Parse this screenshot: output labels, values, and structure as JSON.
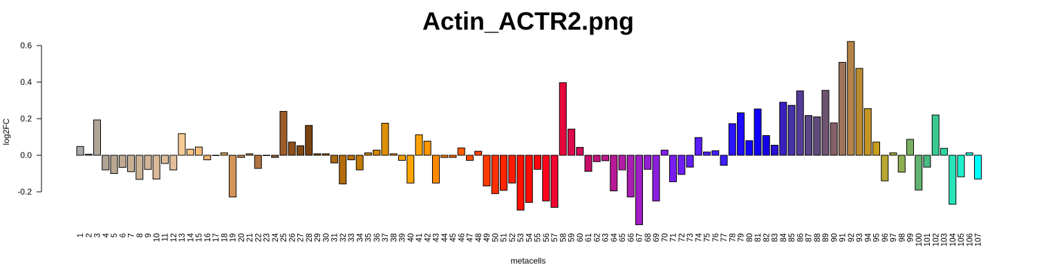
{
  "chart_data": {
    "type": "bar",
    "title": "Actin_ACTR2.png",
    "xlabel": "metacells",
    "ylabel": "log2FC",
    "ylim": [
      -0.38,
      0.62
    ],
    "yticks": [
      -0.2,
      0.0,
      0.2,
      0.4,
      0.6
    ],
    "ytick_labels": [
      "-0.2",
      "0.0",
      "0.2",
      "0.4",
      "0.6"
    ],
    "grid": false,
    "categories": [
      "1",
      "2",
      "3",
      "4",
      "5",
      "6",
      "7",
      "8",
      "9",
      "10",
      "11",
      "12",
      "13",
      "14",
      "15",
      "16",
      "17",
      "18",
      "19",
      "20",
      "21",
      "22",
      "23",
      "24",
      "25",
      "26",
      "27",
      "28",
      "29",
      "30",
      "31",
      "32",
      "33",
      "34",
      "35",
      "36",
      "37",
      "38",
      "39",
      "40",
      "41",
      "42",
      "43",
      "44",
      "45",
      "46",
      "47",
      "48",
      "49",
      "50",
      "51",
      "52",
      "53",
      "54",
      "55",
      "56",
      "57",
      "58",
      "59",
      "60",
      "61",
      "62",
      "63",
      "64",
      "65",
      "66",
      "67",
      "68",
      "69",
      "70",
      "71",
      "72",
      "73",
      "74",
      "75",
      "76",
      "77",
      "78",
      "79",
      "80",
      "81",
      "82",
      "83",
      "84",
      "85",
      "86",
      "87",
      "88",
      "89",
      "90",
      "91",
      "92",
      "93",
      "94",
      "95",
      "96",
      "97",
      "98",
      "99",
      "100",
      "101",
      "102",
      "103",
      "104",
      "105",
      "106",
      "107"
    ],
    "values": [
      0.048,
      0.006,
      0.193,
      -0.08,
      -0.1,
      -0.066,
      -0.09,
      -0.132,
      -0.077,
      -0.13,
      -0.045,
      -0.08,
      0.118,
      0.033,
      0.045,
      -0.025,
      0.0,
      0.013,
      -0.228,
      -0.012,
      0.008,
      -0.072,
      0.0,
      -0.012,
      0.24,
      0.072,
      0.052,
      0.163,
      0.008,
      0.008,
      -0.042,
      -0.157,
      -0.025,
      -0.08,
      0.013,
      0.028,
      0.175,
      0.008,
      -0.028,
      -0.152,
      0.112,
      0.077,
      -0.152,
      -0.012,
      -0.012,
      0.04,
      -0.028,
      0.022,
      -0.168,
      -0.21,
      -0.192,
      -0.152,
      -0.3,
      -0.258,
      -0.077,
      -0.25,
      -0.285,
      0.397,
      0.143,
      0.043,
      -0.088,
      -0.035,
      -0.03,
      -0.195,
      -0.08,
      -0.228,
      -0.38,
      -0.077,
      -0.25,
      0.028,
      -0.145,
      -0.105,
      -0.065,
      0.097,
      0.018,
      0.025,
      -0.055,
      0.173,
      0.232,
      0.08,
      0.253,
      0.108,
      0.055,
      0.29,
      0.273,
      0.352,
      0.217,
      0.21,
      0.355,
      0.177,
      0.508,
      0.622,
      0.475,
      0.255,
      0.072,
      -0.14,
      0.013,
      -0.092,
      0.087,
      -0.19,
      -0.065,
      0.22,
      0.038,
      -0.268,
      -0.118,
      0.013,
      -0.13
    ],
    "colors": [
      "#A8A8A8",
      "#ABA7A3",
      "#AFA698",
      "#B2A595",
      "#B9A68F",
      "#C1AA92",
      "#C6AF95",
      "#CCB296",
      "#D2B697",
      "#D9BA9B",
      "#DEBC9C",
      "#E1BE9E",
      "#F7CA95",
      "#F5C386",
      "#F1BC7A",
      "#EAB272",
      "#E2A968",
      "#DDA060",
      "#D59457",
      "#CB894E",
      "#BE7E46",
      "#B17343",
      "#A36A40",
      "#95613C",
      "#9E5C2A",
      "#8E4E1B",
      "#844814",
      "#7A420F",
      "#8B4E12",
      "#9E5E0E",
      "#AA680E",
      "#B36C0B",
      "#B9710A",
      "#C17909",
      "#C98008",
      "#D58706",
      "#DF8F04",
      "#E79605",
      "#F09F02",
      "#FBA403",
      "#FFA300",
      "#FF9700",
      "#FF8900",
      "#FF7A00",
      "#FF6C00",
      "#FF5D00",
      "#FF4F00",
      "#FF4300",
      "#FF3A00",
      "#FF3000",
      "#FF2500",
      "#FF1A00",
      "#FF1000",
      "#FF0A00",
      "#FF0510",
      "#FF051C",
      "#F00630",
      "#E6063D",
      "#DC0B4D",
      "#D00E5C",
      "#C80F6C",
      "#C2137A",
      "#BD1788",
      "#B81A96",
      "#B21DA5",
      "#AA1EB5",
      "#A01EC5",
      "#961ED2",
      "#8C1EDE",
      "#821EE8",
      "#781EF0",
      "#6E1EF5",
      "#641EFA",
      "#5A1EFF",
      "#501EFF",
      "#461EFF",
      "#3C1EFF",
      "#2C14FF",
      "#1E0AFF",
      "#1405FF",
      "#1000F8",
      "#1600E8",
      "#2A10D8",
      "#3A20C0",
      "#4830A8",
      "#543C98",
      "#5C4488",
      "#604C7C",
      "#6E5470",
      "#846068",
      "#A0745C",
      "#B48447",
      "#BC8A30",
      "#C49424",
      "#C8A020",
      "#B8A833",
      "#A6AC40",
      "#8EAE50",
      "#7AAE60",
      "#62B270",
      "#4ABA80",
      "#3AC890",
      "#30D6A4",
      "#28E4B8",
      "#20F0CC",
      "#10F8E4",
      "#00FFFF"
    ]
  }
}
